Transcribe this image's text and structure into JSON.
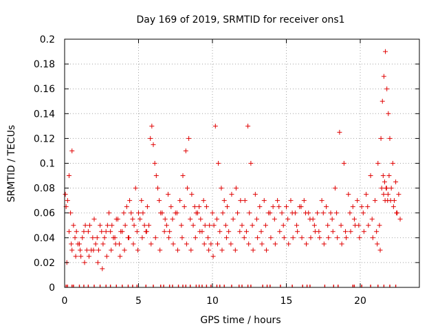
{
  "chart_data": {
    "type": "scatter",
    "title": "Day 169 of 2019, SRMTID for receiver ons1",
    "xlabel": "GPS time / hours",
    "ylabel": "SRMTID / TECUs",
    "xlim": [
      0,
      24
    ],
    "ylim": [
      0,
      0.2
    ],
    "x_ticks": [
      0,
      5,
      10,
      15,
      20
    ],
    "x_tick_labels": [
      "0",
      "5",
      "10",
      "15",
      "20"
    ],
    "y_ticks": [
      0,
      0.02,
      0.04,
      0.06,
      0.08,
      0.1,
      0.12,
      0.14,
      0.16,
      0.18,
      0.2
    ],
    "y_tick_labels": [
      "0",
      "0.02",
      "0.04",
      "0.06",
      "0.08",
      "0.1",
      "0.12",
      "0.14",
      "0.16",
      "0.18",
      "0.2"
    ],
    "grid": true,
    "marker": "+",
    "color": "#e00000",
    "series": [
      {
        "name": "ons1",
        "x": [
          0.05,
          0.1,
          0.2,
          0.3,
          0.4,
          0.5,
          0.6,
          0.8,
          1.0,
          1.2,
          1.4,
          1.6,
          1.8,
          2.0,
          2.2,
          2.4,
          2.6,
          2.8,
          3.0,
          3.2,
          3.4,
          3.6,
          3.8,
          4.0,
          4.2,
          4.4,
          4.6,
          4.8,
          5.0,
          5.2,
          5.4,
          5.6,
          5.8,
          5.9,
          6.0,
          6.1,
          6.3,
          6.5,
          6.8,
          7.0,
          7.2,
          7.5,
          7.8,
          8.0,
          8.2,
          8.4,
          8.6,
          8.8,
          9.0,
          9.2,
          9.4,
          9.6,
          9.8,
          10.0,
          10.2,
          10.4,
          10.6,
          10.8,
          11.0,
          11.3,
          11.6,
          11.9,
          12.2,
          12.4,
          12.6,
          12.9,
          13.2,
          13.5,
          13.8,
          14.1,
          14.4,
          14.7,
          15.0,
          15.3,
          15.6,
          15.9,
          16.2,
          16.5,
          16.8,
          17.1,
          17.4,
          17.7,
          18.0,
          18.3,
          18.6,
          18.9,
          19.2,
          19.5,
          19.8,
          20.1,
          20.4,
          20.7,
          21.0,
          21.2,
          21.4,
          21.5,
          21.6,
          21.7,
          21.8,
          21.9,
          22.0,
          22.2,
          22.4,
          22.6,
          0.3,
          0.5,
          0.7,
          0.9,
          1.1,
          1.3,
          1.5,
          1.7,
          1.9,
          2.1,
          2.3,
          2.5,
          2.7,
          2.9,
          3.1,
          3.3,
          3.5,
          3.7,
          3.9,
          4.1,
          4.3,
          4.5,
          4.7,
          4.9,
          5.1,
          5.3,
          5.5,
          5.7,
          6.2,
          6.4,
          6.6,
          6.9,
          7.1,
          7.3,
          7.6,
          7.9,
          8.1,
          8.3,
          8.5,
          8.7,
          8.9,
          9.1,
          9.3,
          9.5,
          9.7,
          9.9,
          10.1,
          10.3,
          10.5,
          10.7,
          10.9,
          11.1,
          11.4,
          11.7,
          12.0,
          12.3,
          12.5,
          12.7,
          13.0,
          13.3,
          13.6,
          13.9,
          14.2,
          14.5,
          14.8,
          15.1,
          15.4,
          15.7,
          16.0,
          16.3,
          16.6,
          16.9,
          17.2,
          17.5,
          17.8,
          18.1,
          18.4,
          18.7,
          19.0,
          19.3,
          19.6,
          19.9,
          20.2,
          20.5,
          20.8,
          21.1,
          21.3,
          21.45,
          21.55,
          21.65,
          21.75,
          21.85,
          21.95,
          22.1,
          22.3,
          22.5,
          22.7,
          0.15,
          0.45,
          0.75,
          1.05,
          1.35,
          1.65,
          1.95,
          2.25,
          2.55,
          2.85,
          3.15,
          3.45,
          3.75,
          4.05,
          4.35,
          4.65,
          4.95,
          5.25,
          5.55,
          5.85,
          6.15,
          6.45,
          6.75,
          7.05,
          7.35,
          7.65,
          7.95,
          8.25,
          8.55,
          8.85,
          9.15,
          9.45,
          9.75,
          10.05,
          10.35,
          10.65,
          10.95,
          11.25,
          11.55,
          11.85,
          12.15,
          12.45,
          12.75,
          13.05,
          13.35,
          13.65,
          13.95,
          14.25,
          14.55,
          14.85,
          15.15,
          15.45,
          15.75,
          16.05,
          16.35,
          16.65,
          16.95,
          17.25,
          17.55,
          17.85,
          18.15,
          18.45,
          18.75,
          19.05,
          19.35,
          19.65,
          19.95,
          20.25,
          20.55,
          20.85,
          21.15,
          21.35,
          21.58,
          21.68,
          21.78,
          21.88,
          22.05,
          22.25,
          22.45
        ],
        "y": [
          0.075,
          0.065,
          0.07,
          0.09,
          0.06,
          0.11,
          0.05,
          0.045,
          0.035,
          0.04,
          0.05,
          0.045,
          0.03,
          0.055,
          0.04,
          0.05,
          0.035,
          0.045,
          0.06,
          0.05,
          0.04,
          0.055,
          0.045,
          0.06,
          0.065,
          0.07,
          0.055,
          0.08,
          0.06,
          0.07,
          0.05,
          0.065,
          0.12,
          0.13,
          0.115,
          0.1,
          0.08,
          0.06,
          0.055,
          0.075,
          0.065,
          0.06,
          0.07,
          0.09,
          0.11,
          0.12,
          0.075,
          0.065,
          0.06,
          0.055,
          0.07,
          0.065,
          0.05,
          0.06,
          0.13,
          0.1,
          0.08,
          0.07,
          0.065,
          0.075,
          0.08,
          0.07,
          0.07,
          0.13,
          0.1,
          0.075,
          0.065,
          0.07,
          0.06,
          0.065,
          0.07,
          0.06,
          0.065,
          0.07,
          0.06,
          0.065,
          0.07,
          0.06,
          0.055,
          0.06,
          0.07,
          0.065,
          0.06,
          0.08,
          0.125,
          0.1,
          0.075,
          0.065,
          0.07,
          0.065,
          0.075,
          0.09,
          0.07,
          0.1,
          0.12,
          0.15,
          0.17,
          0.19,
          0.16,
          0.14,
          0.12,
          0.1,
          0.085,
          0.075,
          0.045,
          0.03,
          0.04,
          0.035,
          0.025,
          0.045,
          0.03,
          0.05,
          0.04,
          0.035,
          0.03,
          0.045,
          0.04,
          0.05,
          0.045,
          0.04,
          0.055,
          0.035,
          0.045,
          0.05,
          0.04,
          0.06,
          0.05,
          0.045,
          0.055,
          0.06,
          0.045,
          0.05,
          0.09,
          0.07,
          0.06,
          0.05,
          0.045,
          0.055,
          0.06,
          0.05,
          0.065,
          0.08,
          0.055,
          0.05,
          0.06,
          0.065,
          0.045,
          0.05,
          0.04,
          0.035,
          0.05,
          0.055,
          0.045,
          0.06,
          0.05,
          0.045,
          0.055,
          0.06,
          0.05,
          0.045,
          0.06,
          0.05,
          0.055,
          0.045,
          0.05,
          0.06,
          0.055,
          0.065,
          0.05,
          0.055,
          0.06,
          0.05,
          0.065,
          0.06,
          0.055,
          0.05,
          0.045,
          0.06,
          0.05,
          0.055,
          0.06,
          0.05,
          0.045,
          0.06,
          0.055,
          0.05,
          0.06,
          0.065,
          0.055,
          0.045,
          0.05,
          0.08,
          0.09,
          0.085,
          0.08,
          0.07,
          0.09,
          0.08,
          0.07,
          0.06,
          0.055,
          0.02,
          0.035,
          0.025,
          0.03,
          0.02,
          0.025,
          0.03,
          0.02,
          0.015,
          0.025,
          0.03,
          0.035,
          0.025,
          0.03,
          0.04,
          0.035,
          0.03,
          0.04,
          0.045,
          0.035,
          0.04,
          0.03,
          0.045,
          0.04,
          0.035,
          0.03,
          0.04,
          0.035,
          0.03,
          0.04,
          0.045,
          0.035,
          0.03,
          0.025,
          0.035,
          0.03,
          0.04,
          0.035,
          0.03,
          0.045,
          0.04,
          0.035,
          0.03,
          0.04,
          0.035,
          0.03,
          0.04,
          0.035,
          0.045,
          0.04,
          0.035,
          0.04,
          0.045,
          0.04,
          0.035,
          0.04,
          0.045,
          0.04,
          0.035,
          0.04,
          0.045,
          0.04,
          0.035,
          0.04,
          0.045,
          0.05,
          0.04,
          0.045,
          0.05,
          0.04,
          0.035,
          0.03,
          0.075,
          0.07,
          0.08,
          0.075,
          0.07,
          0.065,
          0.06
        ]
      }
    ],
    "zero_markers_x": [
      0.1,
      0.2,
      0.5,
      0.6,
      1.0,
      1.3,
      1.6,
      2.0,
      2.4,
      2.8,
      3.1,
      3.5,
      3.9,
      4.3,
      4.6,
      4.9,
      5.5,
      6.0,
      6.5,
      6.7,
      7.1,
      7.3,
      7.7,
      8.0,
      8.2,
      8.5,
      8.9,
      9.1,
      9.3,
      9.6,
      9.9,
      10.3,
      10.5,
      10.8,
      11.3,
      11.8,
      12.0,
      12.4,
      12.6,
      13.4,
      13.7,
      13.9,
      14.6,
      15.4,
      16.1,
      16.4,
      16.6,
      17.6,
      18.2,
      18.5,
      19.5,
      19.6,
      20.1,
      20.7,
      21.2,
      21.6,
      22.0,
      22.4
    ]
  }
}
